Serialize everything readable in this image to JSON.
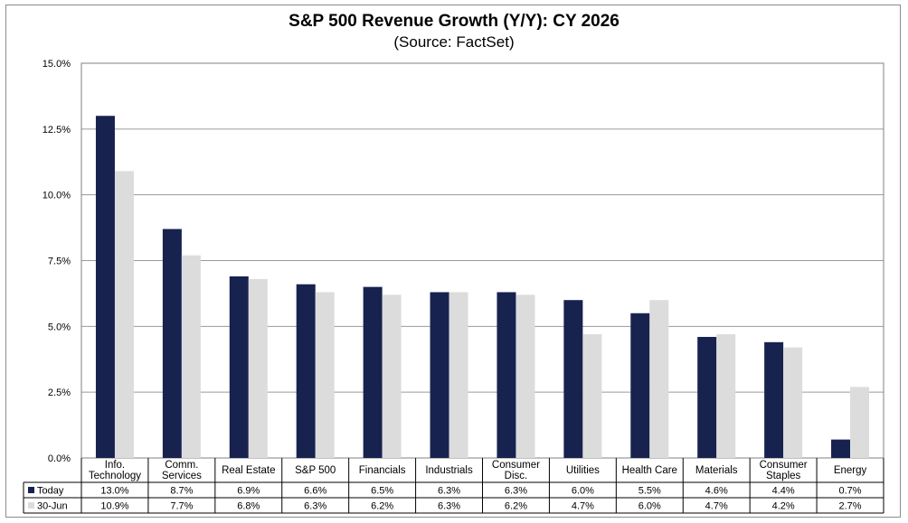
{
  "chart_data": {
    "type": "bar",
    "title": "S&P 500 Revenue Growth (Y/Y):  CY 2026",
    "subtitle": "(Source: FactSet)",
    "categories": [
      [
        "Info.",
        "Technology"
      ],
      [
        "Comm.",
        "Services"
      ],
      [
        "Real Estate"
      ],
      [
        "S&P 500"
      ],
      [
        "Financials"
      ],
      [
        "Industrials"
      ],
      [
        "Consumer",
        "Disc."
      ],
      [
        "Utilities"
      ],
      [
        "Health Care"
      ],
      [
        "Materials"
      ],
      [
        "Consumer",
        "Staples"
      ],
      [
        "Energy"
      ]
    ],
    "series": [
      {
        "name": "Today",
        "color": "#17224f",
        "values": [
          13.0,
          8.7,
          6.9,
          6.6,
          6.5,
          6.3,
          6.3,
          6.0,
          5.5,
          4.6,
          4.4,
          0.7
        ],
        "labels": [
          "13.0%",
          "8.7%",
          "6.9%",
          "6.6%",
          "6.5%",
          "6.3%",
          "6.3%",
          "6.0%",
          "5.5%",
          "4.6%",
          "4.4%",
          "0.7%"
        ]
      },
      {
        "name": "30-Jun",
        "color": "#dcdcdc",
        "values": [
          10.9,
          7.7,
          6.8,
          6.3,
          6.2,
          6.3,
          6.2,
          4.7,
          6.0,
          4.7,
          4.2,
          2.7
        ],
        "labels": [
          "10.9%",
          "7.7%",
          "6.8%",
          "6.3%",
          "6.2%",
          "6.3%",
          "6.2%",
          "4.7%",
          "6.0%",
          "4.7%",
          "4.2%",
          "2.7%"
        ]
      }
    ],
    "yticks": [
      "0.0%",
      "2.5%",
      "5.0%",
      "7.5%",
      "10.0%",
      "12.5%",
      "15.0%"
    ],
    "ylim": [
      0,
      15
    ],
    "grid": true,
    "legend": "data-table"
  }
}
